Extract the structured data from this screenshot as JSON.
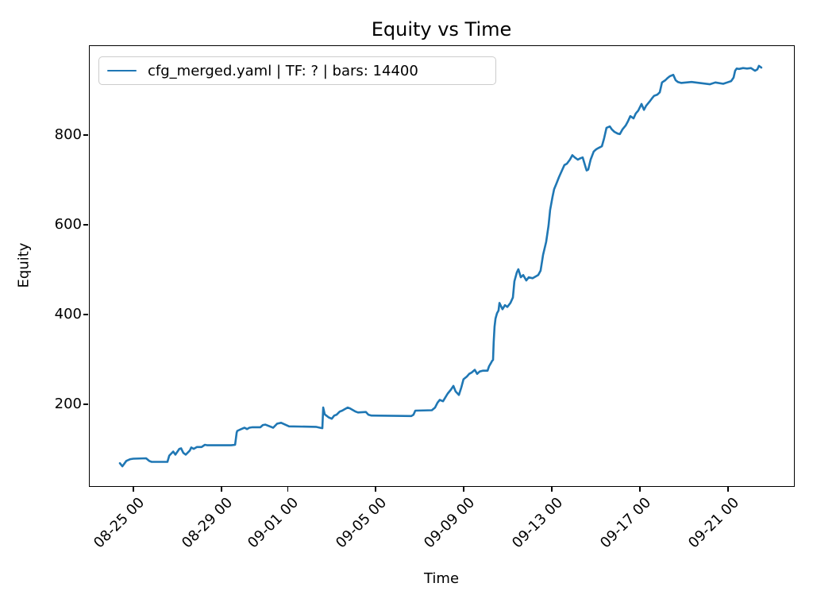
{
  "chart_data": {
    "type": "line",
    "title": "Equity vs Time",
    "xlabel": "Time",
    "ylabel": "Equity",
    "grid": false,
    "legend_position": "upper left",
    "x_unit": "days since 08-25 00:00",
    "xlim_days": [
      -2.02,
      29.95
    ],
    "ylim": [
      20,
      1000
    ],
    "y_ticks": [
      200,
      400,
      600,
      800
    ],
    "x_ticks": [
      {
        "t": 0,
        "label": "08-25 00"
      },
      {
        "t": 4,
        "label": "08-29 00"
      },
      {
        "t": 7,
        "label": "09-01 00"
      },
      {
        "t": 11,
        "label": "09-05 00"
      },
      {
        "t": 15,
        "label": "09-09 00"
      },
      {
        "t": 19,
        "label": "09-13 00"
      },
      {
        "t": 23,
        "label": "09-17 00"
      },
      {
        "t": 27,
        "label": "09-21 00"
      }
    ],
    "series": [
      {
        "name": "cfg_merged.yaml | TF: ? | bars: 14400",
        "color": "#1f77b4",
        "points": [
          [
            -0.65,
            71
          ],
          [
            -0.54,
            64
          ],
          [
            -0.36,
            76
          ],
          [
            -0.18,
            80
          ],
          [
            -0.04,
            81
          ],
          [
            0.54,
            82
          ],
          [
            0.68,
            76
          ],
          [
            0.79,
            74
          ],
          [
            1.51,
            74
          ],
          [
            1.59,
            88
          ],
          [
            1.77,
            97
          ],
          [
            1.87,
            90
          ],
          [
            2.05,
            103
          ],
          [
            2.13,
            104
          ],
          [
            2.23,
            94
          ],
          [
            2.34,
            90
          ],
          [
            2.52,
            99
          ],
          [
            2.59,
            106
          ],
          [
            2.7,
            103
          ],
          [
            2.85,
            107
          ],
          [
            3.06,
            107
          ],
          [
            3.21,
            112
          ],
          [
            3.32,
            111
          ],
          [
            4.4,
            111
          ],
          [
            4.58,
            112
          ],
          [
            4.65,
            139
          ],
          [
            4.68,
            143
          ],
          [
            4.86,
            147
          ],
          [
            5.01,
            150
          ],
          [
            5.12,
            147
          ],
          [
            5.23,
            150
          ],
          [
            5.37,
            151
          ],
          [
            5.73,
            151
          ],
          [
            5.84,
            156
          ],
          [
            5.95,
            157
          ],
          [
            6.31,
            150
          ],
          [
            6.49,
            159
          ],
          [
            6.67,
            161
          ],
          [
            6.85,
            157
          ],
          [
            7.03,
            153
          ],
          [
            8.25,
            152
          ],
          [
            8.43,
            150
          ],
          [
            8.54,
            149
          ],
          [
            8.58,
            195
          ],
          [
            8.65,
            180
          ],
          [
            8.72,
            177
          ],
          [
            8.83,
            173
          ],
          [
            8.97,
            170
          ],
          [
            9.08,
            177
          ],
          [
            9.19,
            179
          ],
          [
            9.33,
            186
          ],
          [
            9.44,
            188
          ],
          [
            9.55,
            191
          ],
          [
            9.69,
            195
          ],
          [
            9.8,
            193
          ],
          [
            10.05,
            186
          ],
          [
            10.16,
            184
          ],
          [
            10.52,
            185
          ],
          [
            10.63,
            179
          ],
          [
            10.77,
            177
          ],
          [
            12.58,
            176
          ],
          [
            12.68,
            179
          ],
          [
            12.76,
            188
          ],
          [
            13.51,
            189
          ],
          [
            13.66,
            195
          ],
          [
            13.77,
            206
          ],
          [
            13.87,
            212
          ],
          [
            14.02,
            209
          ],
          [
            14.13,
            218
          ],
          [
            14.23,
            226
          ],
          [
            14.38,
            235
          ],
          [
            14.49,
            243
          ],
          [
            14.59,
            231
          ],
          [
            14.74,
            223
          ],
          [
            14.85,
            240
          ],
          [
            14.95,
            258
          ],
          [
            15.1,
            264
          ],
          [
            15.21,
            270
          ],
          [
            15.32,
            273
          ],
          [
            15.46,
            279
          ],
          [
            15.57,
            270
          ],
          [
            15.68,
            275
          ],
          [
            15.82,
            277
          ],
          [
            16.04,
            277
          ],
          [
            16.11,
            287
          ],
          [
            16.18,
            293
          ],
          [
            16.25,
            299
          ],
          [
            16.29,
            301
          ],
          [
            16.32,
            340
          ],
          [
            16.36,
            375
          ],
          [
            16.4,
            393
          ],
          [
            16.47,
            405
          ],
          [
            16.54,
            411
          ],
          [
            16.58,
            428
          ],
          [
            16.72,
            414
          ],
          [
            16.83,
            423
          ],
          [
            16.94,
            419
          ],
          [
            17.08,
            428
          ],
          [
            17.19,
            440
          ],
          [
            17.26,
            476
          ],
          [
            17.37,
            496
          ],
          [
            17.44,
            503
          ],
          [
            17.55,
            485
          ],
          [
            17.66,
            490
          ],
          [
            17.8,
            478
          ],
          [
            17.91,
            485
          ],
          [
            18.09,
            483
          ],
          [
            18.34,
            490
          ],
          [
            18.45,
            500
          ],
          [
            18.56,
            535
          ],
          [
            18.7,
            564
          ],
          [
            18.81,
            600
          ],
          [
            18.88,
            635
          ],
          [
            18.99,
            664
          ],
          [
            19.06,
            681
          ],
          [
            19.17,
            694
          ],
          [
            19.28,
            708
          ],
          [
            19.42,
            723
          ],
          [
            19.53,
            735
          ],
          [
            19.64,
            738
          ],
          [
            19.78,
            747
          ],
          [
            19.89,
            757
          ],
          [
            20.0,
            752
          ],
          [
            20.14,
            747
          ],
          [
            20.25,
            750
          ],
          [
            20.36,
            752
          ],
          [
            20.5,
            729
          ],
          [
            20.54,
            723
          ],
          [
            20.61,
            725
          ],
          [
            20.72,
            747
          ],
          [
            20.86,
            765
          ],
          [
            20.97,
            770
          ],
          [
            21.08,
            773
          ],
          [
            21.23,
            777
          ],
          [
            21.33,
            794
          ],
          [
            21.44,
            818
          ],
          [
            21.59,
            821
          ],
          [
            21.69,
            814
          ],
          [
            21.8,
            809
          ],
          [
            21.95,
            805
          ],
          [
            22.05,
            804
          ],
          [
            22.16,
            814
          ],
          [
            22.31,
            823
          ],
          [
            22.41,
            832
          ],
          [
            22.52,
            844
          ],
          [
            22.67,
            839
          ],
          [
            22.77,
            850
          ],
          [
            22.88,
            856
          ],
          [
            23.03,
            871
          ],
          [
            23.14,
            858
          ],
          [
            23.24,
            867
          ],
          [
            23.39,
            876
          ],
          [
            23.5,
            883
          ],
          [
            23.6,
            889
          ],
          [
            23.75,
            892
          ],
          [
            23.86,
            897
          ],
          [
            23.96,
            919
          ],
          [
            24.11,
            924
          ],
          [
            24.22,
            929
          ],
          [
            24.32,
            933
          ],
          [
            24.47,
            936
          ],
          [
            24.58,
            924
          ],
          [
            24.68,
            920
          ],
          [
            24.83,
            918
          ],
          [
            25.3,
            920
          ],
          [
            25.66,
            918
          ],
          [
            26.13,
            915
          ],
          [
            26.38,
            919
          ],
          [
            26.74,
            916
          ],
          [
            26.92,
            919
          ],
          [
            27.1,
            922
          ],
          [
            27.17,
            927
          ],
          [
            27.21,
            930
          ],
          [
            27.28,
            945
          ],
          [
            27.35,
            950
          ],
          [
            27.46,
            949
          ],
          [
            27.64,
            951
          ],
          [
            27.82,
            950
          ],
          [
            28.0,
            951
          ],
          [
            28.18,
            945
          ],
          [
            28.29,
            948
          ],
          [
            28.36,
            956
          ],
          [
            28.47,
            952
          ]
        ]
      }
    ]
  },
  "legend": {
    "label": "cfg_merged.yaml | TF: ? | bars: 14400"
  },
  "colors": {
    "line": "#1f77b4",
    "spine": "#000000",
    "legend_border": "#cccccc",
    "background": "#ffffff"
  }
}
